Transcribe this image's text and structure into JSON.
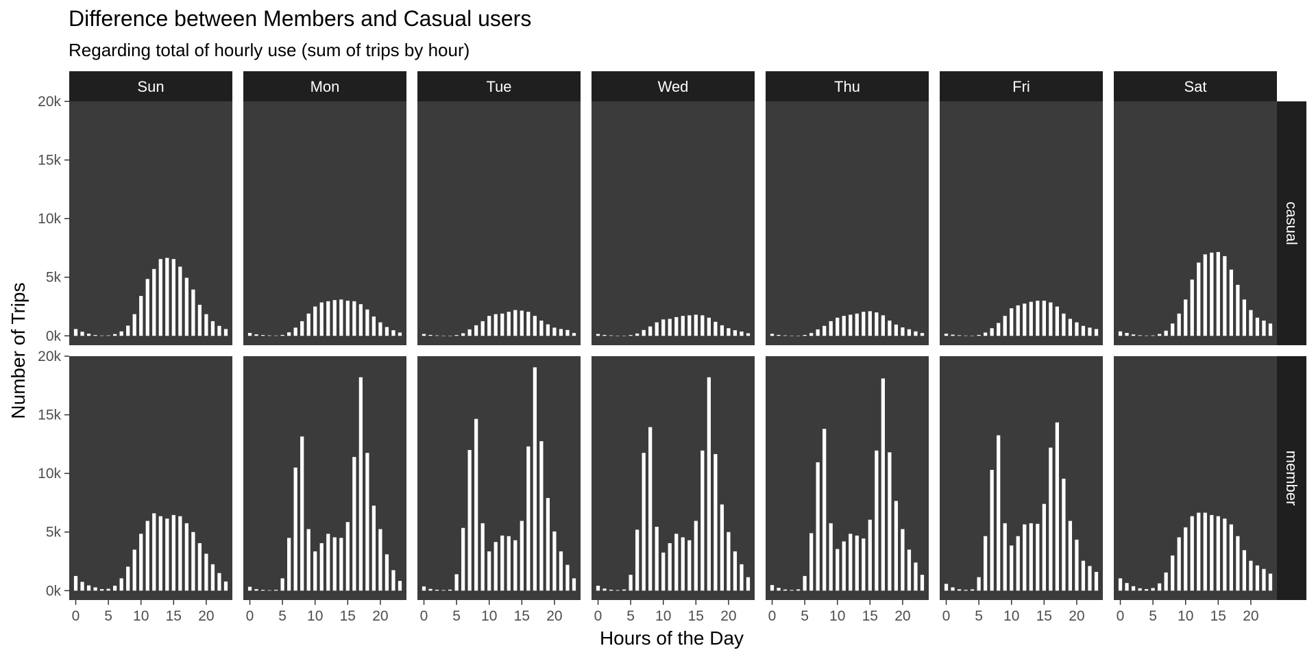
{
  "chart_data": {
    "type": "bar",
    "title": "Difference between Members and Casual users",
    "subtitle": "Regarding total of hourly use (sum of trips by hour)",
    "xlabel": "Hours of the Day",
    "ylabel": "Number of Trips",
    "facet_columns": [
      "Sun",
      "Mon",
      "Tue",
      "Wed",
      "Thu",
      "Fri",
      "Sat"
    ],
    "facet_rows": [
      "casual",
      "member"
    ],
    "x_ticks": [
      0,
      5,
      10,
      15,
      20
    ],
    "x_tick_labels": [
      "0",
      "5",
      "10",
      "15",
      "20"
    ],
    "y_ticks": [
      0,
      5000,
      10000,
      15000,
      20000
    ],
    "y_tick_labels": [
      "0k",
      "5k",
      "10k",
      "15k",
      "20k"
    ],
    "xlim": [
      -1,
      24
    ],
    "ylim": [
      -800,
      20000
    ],
    "hours": [
      0,
      1,
      2,
      3,
      4,
      5,
      6,
      7,
      8,
      9,
      10,
      11,
      12,
      13,
      14,
      15,
      16,
      17,
      18,
      19,
      20,
      21,
      22,
      23
    ],
    "series": [
      {
        "row": "casual",
        "col": "Sun",
        "values": [
          580,
          350,
          180,
          70,
          30,
          40,
          150,
          380,
          870,
          1850,
          3400,
          4850,
          5700,
          6550,
          6650,
          6550,
          5900,
          4950,
          3950,
          2650,
          1850,
          1250,
          850,
          580
        ]
      },
      {
        "row": "casual",
        "col": "Mon",
        "values": [
          250,
          130,
          70,
          40,
          30,
          80,
          300,
          700,
          1250,
          1900,
          2500,
          2850,
          2950,
          3050,
          3100,
          3000,
          2950,
          2700,
          2250,
          1650,
          1150,
          750,
          480,
          280
        ]
      },
      {
        "row": "casual",
        "col": "Tue",
        "values": [
          160,
          80,
          40,
          20,
          20,
          70,
          220,
          550,
          900,
          1250,
          1700,
          1850,
          1900,
          2050,
          2200,
          2150,
          2050,
          1700,
          1300,
          980,
          700,
          580,
          500,
          240
        ]
      },
      {
        "row": "casual",
        "col": "Wed",
        "values": [
          160,
          80,
          40,
          20,
          20,
          70,
          200,
          500,
          800,
          1150,
          1400,
          1450,
          1600,
          1700,
          1750,
          1800,
          1750,
          1550,
          1200,
          900,
          650,
          480,
          370,
          220
        ]
      },
      {
        "row": "casual",
        "col": "Thu",
        "values": [
          170,
          80,
          40,
          20,
          20,
          80,
          240,
          550,
          850,
          1250,
          1550,
          1700,
          1800,
          1900,
          2050,
          2100,
          2000,
          1750,
          1300,
          960,
          720,
          560,
          380,
          240
        ]
      },
      {
        "row": "casual",
        "col": "Fri",
        "values": [
          180,
          100,
          50,
          30,
          20,
          80,
          280,
          650,
          1100,
          1700,
          2350,
          2600,
          2750,
          2900,
          3000,
          3000,
          2850,
          2500,
          1900,
          1450,
          1150,
          850,
          700,
          580
        ]
      },
      {
        "row": "casual",
        "col": "Sat",
        "values": [
          380,
          250,
          120,
          50,
          30,
          40,
          160,
          440,
          1050,
          1900,
          3100,
          4800,
          6250,
          6950,
          7100,
          7150,
          6800,
          5650,
          4350,
          3100,
          2200,
          1550,
          1300,
          1050
        ]
      },
      {
        "row": "member",
        "col": "Sun",
        "values": [
          1250,
          750,
          450,
          280,
          130,
          160,
          420,
          1050,
          2050,
          3500,
          4850,
          5950,
          6600,
          6350,
          6150,
          6450,
          6350,
          5750,
          5000,
          4050,
          3150,
          2250,
          1500,
          780
        ]
      },
      {
        "row": "member",
        "col": "Mon",
        "values": [
          330,
          130,
          70,
          40,
          70,
          1050,
          4500,
          10500,
          13150,
          5250,
          3350,
          4050,
          4850,
          4550,
          4500,
          5850,
          11400,
          18200,
          11750,
          7250,
          5250,
          3100,
          1750,
          830
        ]
      },
      {
        "row": "member",
        "col": "Tue",
        "values": [
          360,
          150,
          80,
          50,
          90,
          1400,
          5350,
          12000,
          14650,
          5750,
          3350,
          4150,
          4700,
          4650,
          4300,
          5950,
          12300,
          19050,
          12750,
          7900,
          5050,
          3350,
          2200,
          1050
        ]
      },
      {
        "row": "member",
        "col": "Wed",
        "values": [
          420,
          180,
          80,
          50,
          100,
          1350,
          5200,
          11750,
          13950,
          5450,
          3250,
          4050,
          4850,
          4550,
          4300,
          5950,
          11950,
          18200,
          11650,
          7350,
          5000,
          3350,
          2250,
          1150
        ]
      },
      {
        "row": "member",
        "col": "Thu",
        "values": [
          480,
          240,
          100,
          60,
          110,
          1250,
          4900,
          10950,
          13800,
          5750,
          3550,
          4200,
          4850,
          4700,
          4450,
          6050,
          11950,
          18100,
          11800,
          7650,
          5250,
          3500,
          2400,
          1350
        ]
      },
      {
        "row": "member",
        "col": "Fri",
        "values": [
          580,
          280,
          120,
          70,
          110,
          1150,
          4650,
          10300,
          13250,
          5750,
          3850,
          4650,
          5650,
          5750,
          5700,
          7400,
          12200,
          14350,
          9550,
          5950,
          4350,
          2550,
          2100,
          1600
        ]
      },
      {
        "row": "member",
        "col": "Sat",
        "values": [
          1050,
          650,
          380,
          200,
          130,
          220,
          620,
          1550,
          3000,
          4550,
          5400,
          6350,
          6650,
          6650,
          6450,
          6350,
          6150,
          5650,
          4650,
          3450,
          2550,
          2150,
          1850,
          1450
        ]
      }
    ],
    "colors": {
      "panel_background": "#3b3b3b",
      "strip_background": "#1f1f1f",
      "strip_text": "#ffffff",
      "bar_fill": "#ffffff",
      "grid": "#4a4a4a",
      "axis_text": "#4d4d4d",
      "title_text": "#000000"
    },
    "grid": false,
    "legend": "none"
  }
}
